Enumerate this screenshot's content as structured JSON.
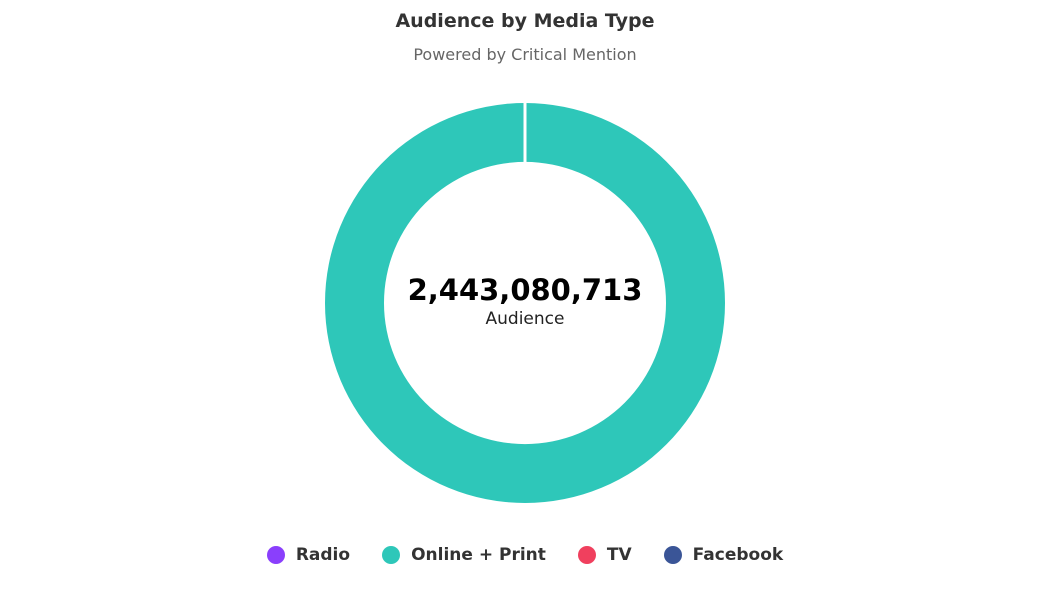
{
  "chart_data": {
    "type": "pie",
    "title": "Audience by Media Type",
    "subtitle": "Powered by Critical Mention",
    "center": {
      "total": "2,443,080,713",
      "label": "Audience"
    },
    "categories": [
      "Radio",
      "Online + Print",
      "TV",
      "Facebook"
    ],
    "values": [
      0,
      2443080713,
      0,
      0
    ],
    "colors": [
      "#8a3ffc",
      "#2ec7b9",
      "#f0405e",
      "#3a5597"
    ],
    "legend_position": "bottom"
  }
}
